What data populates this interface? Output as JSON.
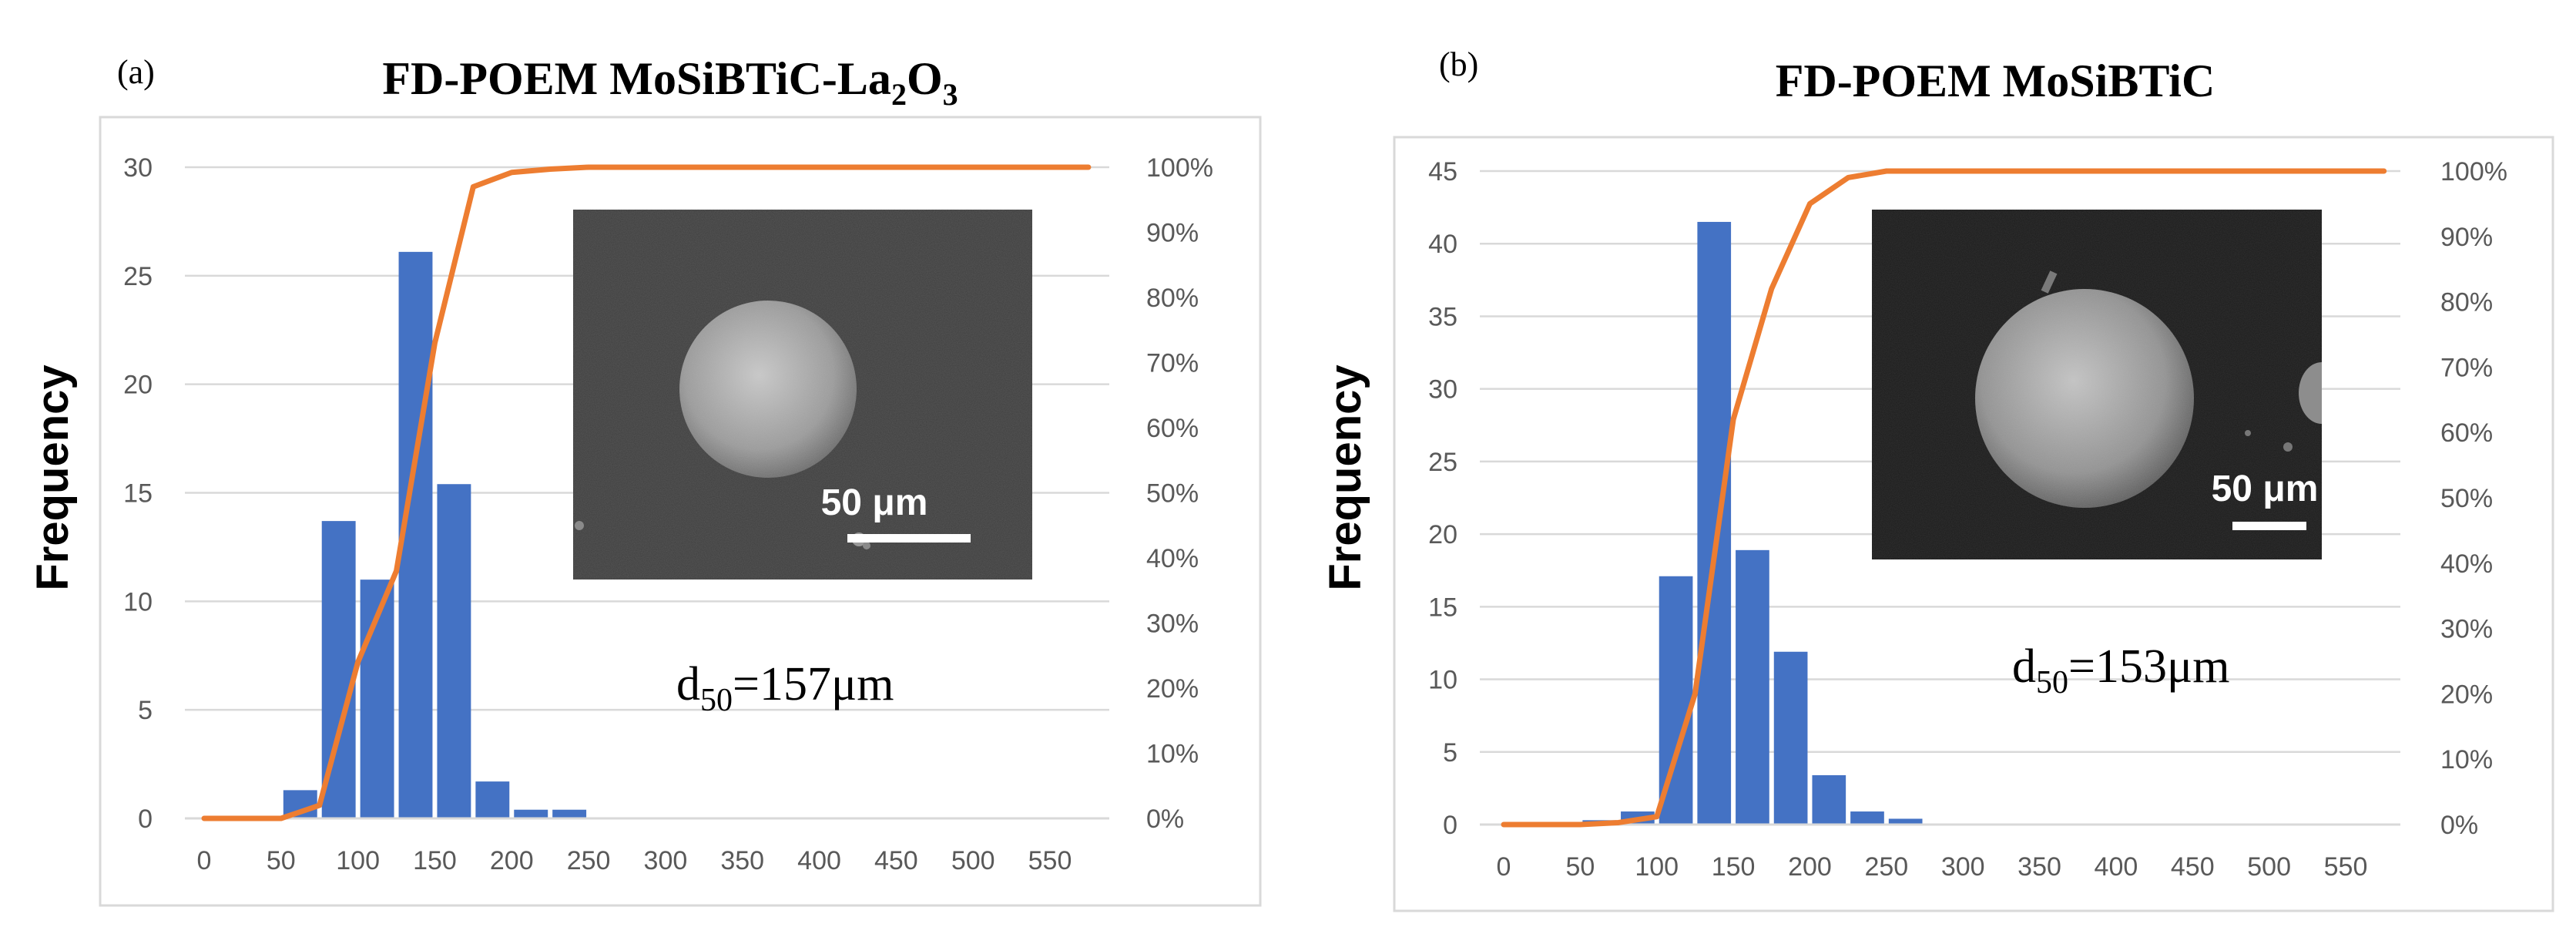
{
  "chart_data": [
    {
      "panel_label": "(a)",
      "title_main": "FD-POEM MoSiBTiC-La",
      "title_sub1": "2",
      "title_mid": "O",
      "title_sub2": "3",
      "type": "bar",
      "ylabel": "Frequency",
      "xlabel": "",
      "x_ticks": [
        0,
        50,
        100,
        150,
        200,
        250,
        300,
        350,
        400,
        450,
        500,
        550
      ],
      "ylim": [
        0,
        30
      ],
      "y_ticks": [
        0,
        5,
        10,
        15,
        20,
        25,
        30
      ],
      "y2lim": [
        0,
        100
      ],
      "y2_ticks": [
        "0%",
        "10%",
        "20%",
        "30%",
        "40%",
        "50%",
        "60%",
        "70%",
        "80%",
        "90%",
        "100%"
      ],
      "bin_width": 25,
      "series": [
        {
          "name": "Frequency",
          "kind": "bar",
          "color": "#4472C4",
          "bins": [
            75,
            100,
            125,
            150,
            175,
            200,
            225,
            250
          ],
          "values": [
            1.3,
            13.7,
            11.0,
            26.1,
            15.4,
            1.7,
            0.4,
            0.4
          ]
        },
        {
          "name": "Cumulative %",
          "kind": "line",
          "color": "#ED7D31",
          "x": [
            0,
            50,
            75,
            100,
            125,
            150,
            175,
            200,
            225,
            250,
            275,
            300,
            350,
            400,
            450,
            500,
            575
          ],
          "values": [
            0,
            0,
            2,
            24,
            38,
            73,
            97,
            99.2,
            99.7,
            100,
            100,
            100,
            100,
            100,
            100,
            100,
            100
          ]
        }
      ],
      "annotation_main": "d",
      "annotation_sub": "50",
      "annotation_value": "=157μm",
      "inset_scale_label": "50 μm"
    },
    {
      "panel_label": "(b)",
      "title_main": "FD-POEM MoSiBTiC",
      "type": "bar",
      "ylabel": "Frequency",
      "xlabel": "",
      "x_ticks": [
        0,
        50,
        100,
        150,
        200,
        250,
        300,
        350,
        400,
        450,
        500,
        550
      ],
      "ylim": [
        0,
        45
      ],
      "y_ticks": [
        0,
        5,
        10,
        15,
        20,
        25,
        30,
        35,
        40,
        45
      ],
      "y2lim": [
        0,
        100
      ],
      "y2_ticks": [
        "0%",
        "10%",
        "20%",
        "30%",
        "40%",
        "50%",
        "60%",
        "70%",
        "80%",
        "90%",
        "100%"
      ],
      "bin_width": 25,
      "series": [
        {
          "name": "Frequency",
          "kind": "bar",
          "color": "#4472C4",
          "bins": [
            75,
            100,
            125,
            150,
            175,
            200,
            225,
            250,
            275
          ],
          "values": [
            0.3,
            0.9,
            17.1,
            41.5,
            18.9,
            11.9,
            3.4,
            0.9,
            0.4
          ]
        },
        {
          "name": "Cumulative %",
          "kind": "line",
          "color": "#ED7D31",
          "x": [
            0,
            50,
            75,
            100,
            125,
            150,
            175,
            200,
            225,
            250,
            275,
            300,
            350,
            400,
            450,
            500,
            575
          ],
          "values": [
            0,
            0,
            0.3,
            1.2,
            20,
            62,
            82,
            95,
            99,
            100,
            100,
            100,
            100,
            100,
            100,
            100,
            100
          ]
        }
      ],
      "annotation_main": "d",
      "annotation_sub": "50",
      "annotation_value": "=153μm",
      "inset_scale_label": "50 μm"
    }
  ]
}
